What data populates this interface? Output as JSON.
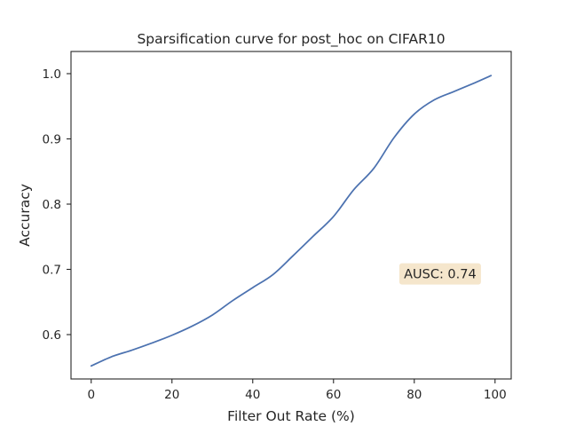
{
  "chart_data": {
    "type": "line",
    "title": "Sparsification curve for post_hoc on CIFAR10",
    "xlabel": "Filter Out Rate (%)",
    "ylabel": "Accuracy",
    "xlim": [
      -5,
      104
    ],
    "ylim": [
      0.532,
      1.034
    ],
    "xticks": [
      0,
      20,
      40,
      60,
      80,
      100
    ],
    "xtick_labels": [
      "0",
      "20",
      "40",
      "60",
      "80",
      "100"
    ],
    "yticks": [
      0.6,
      0.7,
      0.8,
      0.9,
      1.0
    ],
    "ytick_labels": [
      "0.6",
      "0.7",
      "0.8",
      "0.9",
      "1.0"
    ],
    "grid": false,
    "series": [
      {
        "color": "#4c72b0",
        "x": [
          0,
          5,
          10,
          15,
          20,
          25,
          30,
          35,
          40,
          45,
          50,
          55,
          60,
          65,
          70,
          75,
          80,
          85,
          90,
          95,
          99
        ],
        "y": [
          0.552,
          0.566,
          0.576,
          0.587,
          0.599,
          0.613,
          0.63,
          0.652,
          0.672,
          0.692,
          0.721,
          0.751,
          0.781,
          0.822,
          0.855,
          0.902,
          0.938,
          0.96,
          0.973,
          0.986,
          0.997
        ]
      }
    ],
    "annotation": {
      "text": "AUSC: 0.74",
      "x": 86.4,
      "y": 0.693,
      "bg": "#f5e6cc"
    }
  }
}
